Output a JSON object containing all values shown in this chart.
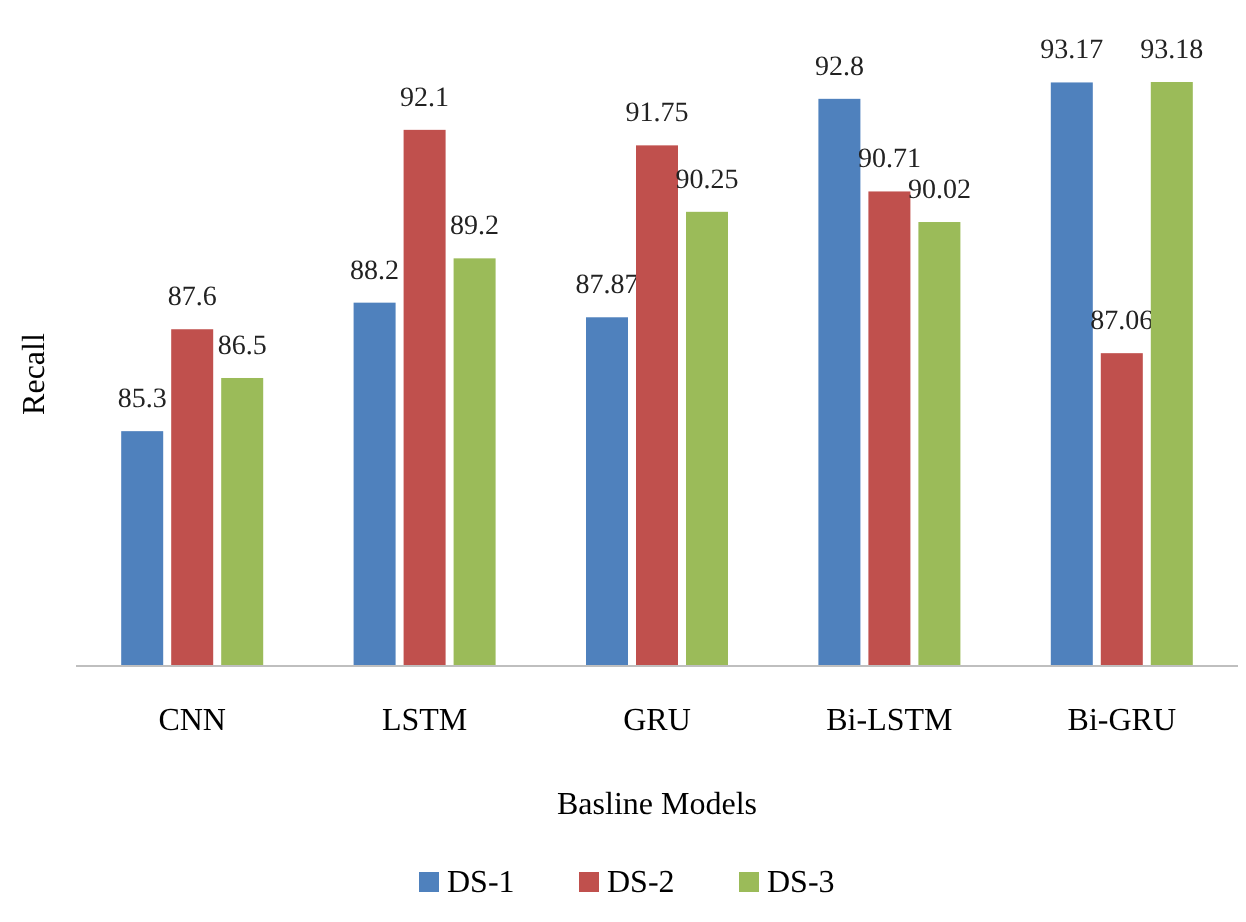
{
  "chart_data": {
    "type": "bar",
    "xlabel": "Basline Models",
    "ylabel": "Recall",
    "categories": [
      "CNN",
      "LSTM",
      "GRU",
      "Bi-LSTM",
      "Bi-GRU"
    ],
    "series": [
      {
        "name": "DS-1",
        "color": "#4f81bd",
        "values": [
          85.3,
          88.2,
          87.87,
          92.8,
          93.17
        ]
      },
      {
        "name": "DS-2",
        "color": "#c0504d",
        "values": [
          87.6,
          92.1,
          91.75,
          90.71,
          87.06
        ]
      },
      {
        "name": "DS-3",
        "color": "#9bbb59",
        "values": [
          86.5,
          89.2,
          90.25,
          90.02,
          93.18
        ]
      }
    ],
    "ylim": [
      80,
      93.18
    ],
    "data_labels": true,
    "legend": "bottom",
    "grid": false
  }
}
